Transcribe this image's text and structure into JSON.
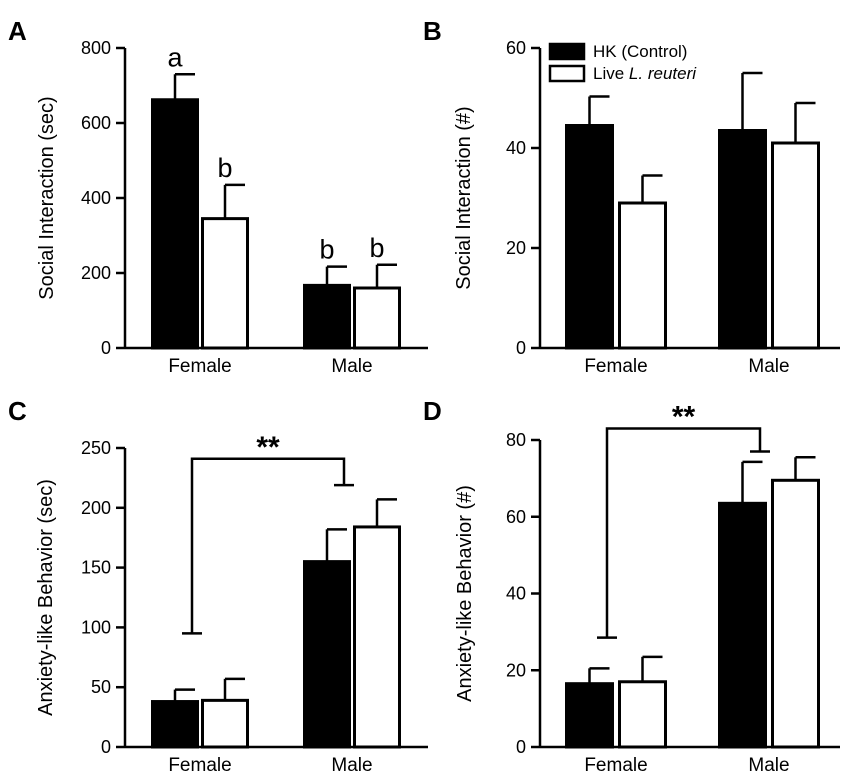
{
  "chart_data": [
    {
      "panel": "A",
      "type": "bar",
      "ylabel": "Social Interaction (sec)",
      "ylim": [
        0,
        800
      ],
      "yticks": [
        0,
        200,
        400,
        600,
        800
      ],
      "categories": [
        "Female",
        "Male"
      ],
      "series": [
        {
          "name": "HK (Control)",
          "values": [
            662,
            167
          ],
          "errors": [
            68,
            50
          ]
        },
        {
          "name": "Live L. reuteri",
          "values": [
            345,
            160
          ],
          "errors": [
            90,
            62
          ]
        }
      ],
      "annotations": [
        [
          "a",
          "b"
        ],
        [
          "b",
          "b"
        ]
      ]
    },
    {
      "panel": "B",
      "type": "bar",
      "ylabel": "Social Interaction (#)",
      "ylim": [
        0,
        60
      ],
      "yticks": [
        0,
        20,
        40,
        60
      ],
      "categories": [
        "Female",
        "Male"
      ],
      "series": [
        {
          "name": "HK (Control)",
          "values": [
            44.5,
            43.5
          ],
          "errors": [
            5.8,
            11.5
          ]
        },
        {
          "name": "Live L. reuteri",
          "values": [
            29,
            41
          ],
          "errors": [
            5.5,
            8
          ]
        }
      ]
    },
    {
      "panel": "C",
      "type": "bar",
      "ylabel": "Anxiety-like Behavior (sec)",
      "ylim": [
        0,
        250
      ],
      "yticks": [
        0,
        50,
        100,
        150,
        200,
        250
      ],
      "categories": [
        "Female",
        "Male"
      ],
      "series": [
        {
          "name": "HK (Control)",
          "values": [
            38,
            155
          ],
          "errors": [
            10,
            27
          ]
        },
        {
          "name": "Live L. reuteri",
          "values": [
            39,
            184
          ],
          "errors": [
            18,
            23
          ]
        }
      ],
      "bracket": {
        "label": "**",
        "left_value": 95,
        "right_value": 219,
        "top_value": 241
      }
    },
    {
      "panel": "D",
      "type": "bar",
      "ylabel": "Anxiety-like Behavior (#)",
      "ylim": [
        0,
        80
      ],
      "yticks": [
        0,
        20,
        40,
        60,
        80
      ],
      "categories": [
        "Female",
        "Male"
      ],
      "series": [
        {
          "name": "HK (Control)",
          "values": [
            16.5,
            63.5
          ],
          "errors": [
            4,
            10.8
          ]
        },
        {
          "name": "Live L. reuteri",
          "values": [
            17,
            69.5
          ],
          "errors": [
            6.5,
            6
          ]
        }
      ],
      "bracket": {
        "label": "**",
        "left_value": 28.5,
        "right_value": 77,
        "top_value": 83
      }
    }
  ],
  "legend": {
    "entries": [
      {
        "label": "HK (Control)",
        "prefix": "HK (Control)",
        "italic": "",
        "fill": "#000000"
      },
      {
        "label": "Live L. reuteri",
        "prefix": "Live ",
        "italic": "L. reuteri",
        "fill": "#ffffff"
      }
    ]
  },
  "colors": {
    "control": "#000000",
    "treated": "#ffffff",
    "stroke": "#000000"
  }
}
